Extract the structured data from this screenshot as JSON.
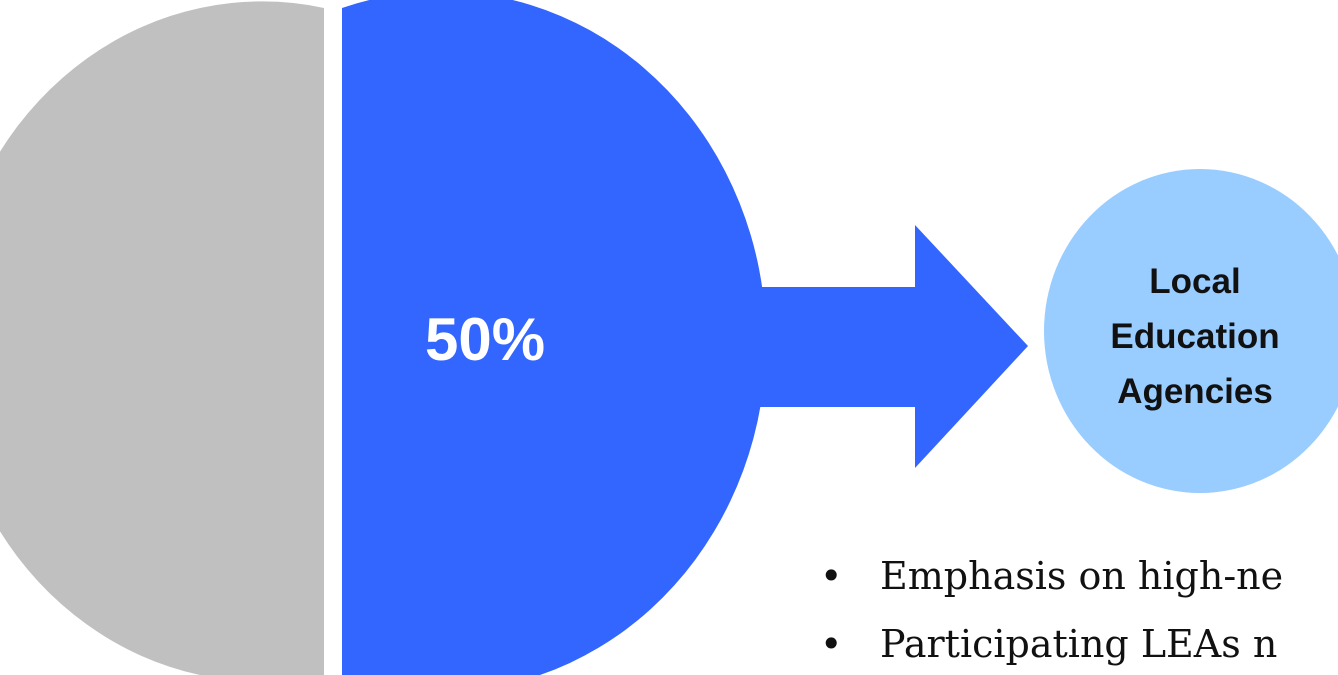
{
  "diagram": {
    "pie": {
      "highlight_label": "50%",
      "highlight_fraction": 0.5,
      "highlight_color": "#3366ff",
      "remainder_color": "#c0c0c0"
    },
    "arrow": {
      "color": "#3366ff"
    },
    "target": {
      "lines": [
        "Local",
        "Education",
        "Agencies"
      ],
      "fill_color": "#99ccff"
    },
    "bullets": [
      "Emphasis on high-ne",
      "Participating LEAs n"
    ]
  }
}
